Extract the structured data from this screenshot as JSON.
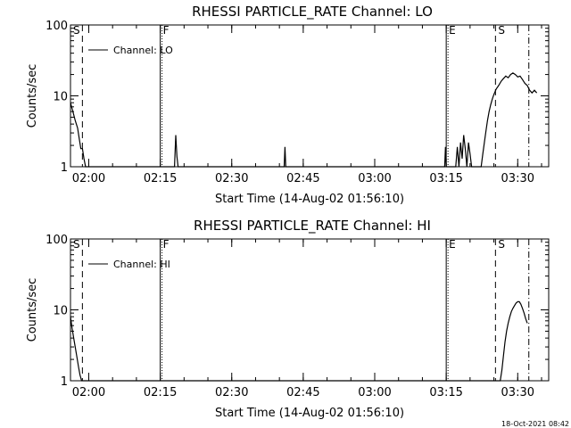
{
  "footer": {
    "timestamp": "18-Oct-2021 08:42"
  },
  "chart_data": [
    {
      "type": "line",
      "title": "RHESSI PARTICLE_RATE Channel: LO",
      "xlabel": "Start Time (14-Aug-02 01:56:10)",
      "ylabel": "Counts/sec",
      "y_scale": "log",
      "ylim": [
        1,
        100
      ],
      "xlim": [
        "01:56:10",
        "03:36:30"
      ],
      "x_ticks": [
        "02:00",
        "02:15",
        "02:30",
        "02:45",
        "03:00",
        "03:15",
        "03:30"
      ],
      "y_ticks": [
        "1",
        "10",
        "100"
      ],
      "legend": {
        "placement": "top-left",
        "entries": [
          "Channel: LO"
        ]
      },
      "series": [
        {
          "name": "Channel: LO",
          "x": [
            "01:56:10",
            "01:56:40",
            "01:57:10",
            "01:57:40",
            "01:58:00",
            "01:58:20",
            "01:58:40",
            "01:59:00",
            "01:59:20",
            "01:59:40",
            "02:18:00",
            "02:18:15",
            "02:18:30",
            "02:18:45",
            "02:41:00",
            "02:41:10",
            "02:41:20",
            "03:14:40",
            "03:14:50",
            "03:15:00",
            "03:15:10",
            "03:15:20",
            "03:17:00",
            "03:17:20",
            "03:17:40",
            "03:18:00",
            "03:18:20",
            "03:18:40",
            "03:19:00",
            "03:19:20",
            "03:19:40",
            "03:20:00",
            "03:20:20",
            "03:22:20",
            "03:22:40",
            "03:23:00",
            "03:23:20",
            "03:23:40",
            "03:24:00",
            "03:24:20",
            "03:24:40",
            "03:25:00",
            "03:25:30",
            "03:26:00",
            "03:26:30",
            "03:27:00",
            "03:27:30",
            "03:28:00",
            "03:28:30",
            "03:29:00",
            "03:29:30",
            "03:30:00",
            "03:30:30",
            "03:31:00",
            "03:31:30",
            "03:32:00",
            "03:32:30",
            "03:33:00",
            "03:33:30",
            "03:34:00"
          ],
          "y": [
            8,
            6,
            4.5,
            3.5,
            2.5,
            1.8,
            1.8,
            1.3,
            1,
            1,
            1,
            2.8,
            1.4,
            1,
            1,
            1.9,
            1,
            1,
            1.9,
            1,
            1,
            1,
            1,
            1.9,
            1,
            2.2,
            1.3,
            2.8,
            1.8,
            1,
            2.2,
            1.5,
            1,
            1,
            1.5,
            2.2,
            3.2,
            4.5,
            6,
            7.5,
            9,
            10.5,
            12.5,
            14,
            16,
            17.5,
            19,
            18,
            20,
            21,
            20,
            18.5,
            19,
            17,
            15,
            14,
            12,
            11,
            12,
            11
          ]
        }
      ],
      "annotations": [
        {
          "label": "S",
          "time": "01:56:10",
          "style": "dashed"
        },
        {
          "label": "",
          "time": "01:58:40",
          "style": "dashed"
        },
        {
          "label": "F",
          "time": "02:15:00",
          "style": "dotted-solid"
        },
        {
          "label": "E",
          "time": "03:15:00",
          "style": "dotted-solid"
        },
        {
          "label": "S",
          "time": "03:25:20",
          "style": "dashed"
        },
        {
          "label": "",
          "time": "03:32:20",
          "style": "dash-dot"
        }
      ]
    },
    {
      "type": "line",
      "title": "RHESSI PARTICLE_RATE Channel: HI",
      "xlabel": "Start Time (14-Aug-02 01:56:10)",
      "ylabel": "Counts/sec",
      "y_scale": "log",
      "ylim": [
        1,
        100
      ],
      "xlim": [
        "01:56:10",
        "03:36:30"
      ],
      "x_ticks": [
        "02:00",
        "02:15",
        "02:30",
        "02:45",
        "03:00",
        "03:15",
        "03:30"
      ],
      "y_ticks": [
        "1",
        "10",
        "100"
      ],
      "legend": {
        "placement": "top-left",
        "entries": [
          "Channel: HI"
        ]
      },
      "series": [
        {
          "name": "Channel: HI",
          "x": [
            "01:56:10",
            "01:56:30",
            "01:56:50",
            "01:57:10",
            "01:57:30",
            "01:57:50",
            "01:58:10",
            "01:58:30",
            "03:26:20",
            "03:26:40",
            "03:27:00",
            "03:27:20",
            "03:27:40",
            "03:28:00",
            "03:28:20",
            "03:28:40",
            "03:29:00",
            "03:29:20",
            "03:29:40",
            "03:30:00",
            "03:30:20",
            "03:30:40",
            "03:31:00",
            "03:31:20",
            "03:31:40",
            "03:32:00"
          ],
          "y": [
            8,
            5.5,
            4,
            3,
            2.2,
            1.6,
            1.2,
            1,
            1,
            1.4,
            2.2,
            3.5,
            5,
            6.5,
            8,
            9.5,
            10.5,
            11.5,
            12.5,
            13,
            13,
            12,
            10.5,
            9,
            7.5,
            6.5
          ]
        }
      ],
      "annotations": [
        {
          "label": "S",
          "time": "01:56:10",
          "style": "dashed"
        },
        {
          "label": "",
          "time": "01:58:40",
          "style": "dashed"
        },
        {
          "label": "F",
          "time": "02:15:00",
          "style": "dotted-solid"
        },
        {
          "label": "E",
          "time": "03:15:00",
          "style": "dotted-solid"
        },
        {
          "label": "S",
          "time": "03:25:20",
          "style": "dashed"
        },
        {
          "label": "",
          "time": "03:32:20",
          "style": "dash-dot"
        }
      ]
    }
  ]
}
